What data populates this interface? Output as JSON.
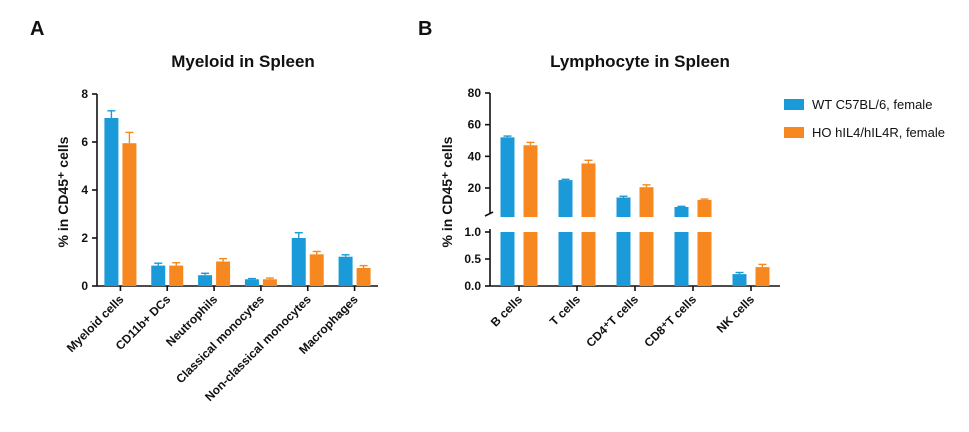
{
  "panels": {
    "a": {
      "letter": "A"
    },
    "b": {
      "letter": "B"
    }
  },
  "legend": {
    "items": [
      {
        "label": "WT C57BL/6, female",
        "color": "#1a9ad9"
      },
      {
        "label": "HO hIL4/hIL4R, female",
        "color": "#f7881f"
      }
    ]
  },
  "chart_data": [
    {
      "type": "bar",
      "title": "Myeloid in Spleen",
      "ylabel": "% in CD45⁺ cells",
      "categories": [
        "Myeloid cells",
        "CD11b+ DCs",
        "Neutrophils",
        "Classical monocytes",
        "Non-classical monocytes",
        "Macrophages"
      ],
      "ylim": [
        0,
        8
      ],
      "yticks": [
        "0",
        "2",
        "4",
        "6",
        "8"
      ],
      "series": [
        {
          "name": "WT C57BL/6, female",
          "color": "#1a9ad9",
          "values": [
            7.0,
            0.85,
            0.45,
            0.28,
            2.0,
            1.22
          ],
          "errors": [
            0.3,
            0.1,
            0.08,
            0.03,
            0.22,
            0.08
          ]
        },
        {
          "name": "HO hIL4/hIL4R, female",
          "color": "#f7881f",
          "values": [
            5.95,
            0.85,
            1.02,
            0.28,
            1.32,
            0.75
          ],
          "errors": [
            0.45,
            0.12,
            0.12,
            0.05,
            0.12,
            0.1
          ]
        }
      ],
      "grid": false,
      "legend": "none"
    },
    {
      "type": "bar",
      "title": "Lymphocyte in Spleen",
      "ylabel": "% in CD45⁺ cells",
      "categories": [
        "B cells",
        "T cells",
        "CD4⁺T cells",
        "CD8⁺T cells",
        "NK cells"
      ],
      "y_axis_break": {
        "lower": [
          0,
          1.0
        ],
        "upper": [
          5,
          80
        ]
      },
      "yticks_lower": [
        "0.0",
        "0.5",
        "1.0"
      ],
      "yticks_upper": [
        "20",
        "40",
        "60",
        "80"
      ],
      "series": [
        {
          "name": "WT C57BL/6, female",
          "color": "#1a9ad9",
          "values": [
            52,
            25,
            14,
            8,
            0.22
          ],
          "errors": [
            0.8,
            0.5,
            0.8,
            0.4,
            0.03
          ]
        },
        {
          "name": "HO hIL4/hIL4R, female",
          "color": "#f7881f",
          "values": [
            47,
            35.5,
            20.5,
            12.5,
            0.35
          ],
          "errors": [
            1.8,
            2.0,
            1.5,
            0.5,
            0.05
          ]
        }
      ],
      "grid": false,
      "legend": "right"
    }
  ]
}
